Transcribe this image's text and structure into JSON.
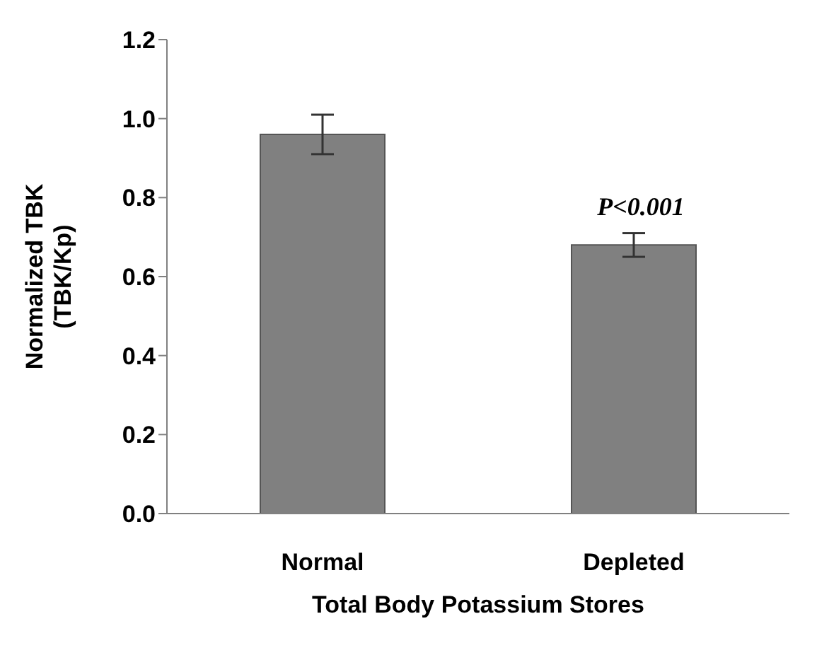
{
  "chart_data": {
    "type": "bar",
    "xlabel": "Total Body Potassium Stores",
    "ylabel": "Normalized TBK\n(TBK/Kp)",
    "categories": [
      "Normal",
      "Depleted"
    ],
    "values": [
      0.96,
      0.68
    ],
    "errors": [
      0.05,
      0.03
    ],
    "color": "#808080",
    "ylim": [
      0,
      1.2
    ],
    "yticks": [
      {
        "value": 0,
        "label": "0.0"
      },
      0.2,
      0.4,
      0.6,
      0.8,
      {
        "value": 1,
        "label": "1.0"
      },
      1.2
    ],
    "annotations": [
      "P<0.001"
    ],
    "grid": false,
    "legend": false
  }
}
